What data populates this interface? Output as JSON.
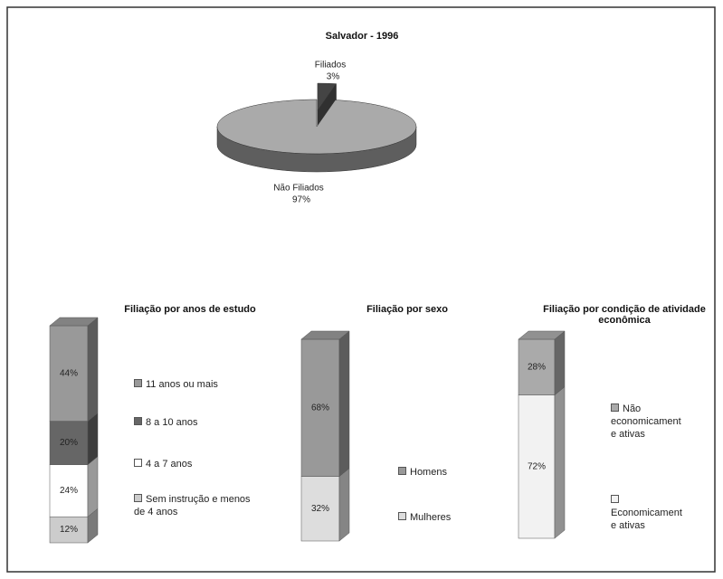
{
  "chart_data": [
    {
      "type": "pie",
      "title": "Salvador - 1996",
      "categories": [
        "Filiados",
        "Não Filiados"
      ],
      "values": [
        3,
        97
      ],
      "value_labels": [
        "3%",
        "97%"
      ],
      "colors": [
        "#444444",
        "#aaaaaa"
      ]
    },
    {
      "type": "bar",
      "stacked": true,
      "title": "Filiação por anos de estudo",
      "series": [
        {
          "name": "Sem instrução e menos de 4 anos",
          "color": "#cccccc",
          "values": [
            12
          ],
          "value_labels": [
            "12%"
          ]
        },
        {
          "name": "4 a 7 anos",
          "color": "#ffffff",
          "values": [
            24
          ],
          "value_labels": [
            "24%"
          ]
        },
        {
          "name": "8 a 10 anos",
          "color": "#666666",
          "values": [
            20
          ],
          "value_labels": [
            "20%"
          ]
        },
        {
          "name": "11 anos ou mais",
          "color": "#999999",
          "values": [
            44
          ],
          "value_labels": [
            "44%"
          ]
        }
      ]
    },
    {
      "type": "bar",
      "stacked": true,
      "title": "Filiação por sexo",
      "series": [
        {
          "name": "Mulheres",
          "color": "#dddddd",
          "values": [
            32
          ],
          "value_labels": [
            "32%"
          ]
        },
        {
          "name": "Homens",
          "color": "#999999",
          "values": [
            68
          ],
          "value_labels": [
            "68%"
          ]
        }
      ]
    },
    {
      "type": "bar",
      "stacked": true,
      "title": "Filiação por condição de atividade econômica",
      "series": [
        {
          "name": "Economicamente ativas",
          "color": "#f2f2f2",
          "values": [
            72
          ],
          "value_labels": [
            "72%"
          ]
        },
        {
          "name": "Não economicamente ativas",
          "color": "#aaaaaa",
          "values": [
            28
          ],
          "value_labels": [
            "28%"
          ]
        }
      ]
    }
  ]
}
